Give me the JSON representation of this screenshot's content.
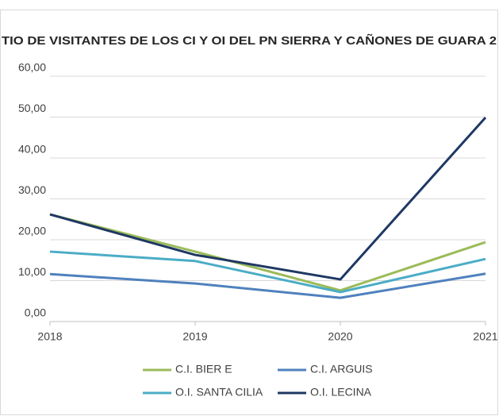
{
  "chart_data": {
    "type": "line",
    "title": "TIO DE VISITANTES DE LOS CI Y OI DEL PN SIERRA Y CAÑONES DE GUARA 2",
    "x": [
      2018,
      2019,
      2020,
      2021
    ],
    "xlim": [
      2018,
      2021
    ],
    "xticks": [
      2018,
      2019,
      2020,
      2021
    ],
    "ylim": [
      0,
      60
    ],
    "yticks": [
      {
        "value": 0,
        "label": "0,00"
      },
      {
        "value": 10,
        "label": "10,00"
      },
      {
        "value": 20,
        "label": "20,00"
      },
      {
        "value": 30,
        "label": "30,00"
      },
      {
        "value": 40,
        "label": "40,00"
      },
      {
        "value": 50,
        "label": "50,00"
      },
      {
        "value": 60,
        "label": "60,00"
      }
    ],
    "grid": true,
    "legend": "bottom",
    "series": [
      {
        "name": "C.I. BIER E",
        "color": "#9bbb59",
        "values": [
          26.2,
          17.1,
          7.6,
          19.4
        ]
      },
      {
        "name": "C.I. ARGUIS",
        "color": "#4f81bd",
        "values": [
          11.6,
          9.3,
          5.8,
          11.7
        ]
      },
      {
        "name": "O.I. SANTA CILIA",
        "color": "#4bacc6",
        "values": [
          17.1,
          14.8,
          7.2,
          15.3
        ]
      },
      {
        "name": "O.I. LECINA",
        "color": "#1f3864",
        "values": [
          26.2,
          16.3,
          10.3,
          49.9
        ]
      }
    ]
  }
}
